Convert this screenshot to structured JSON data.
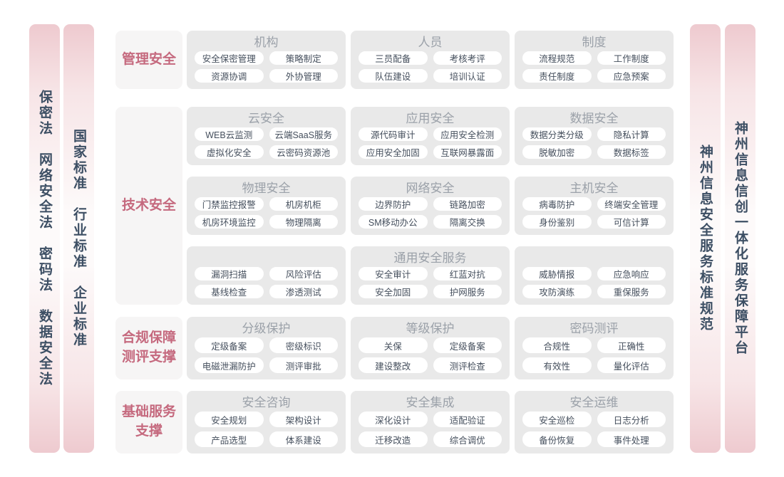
{
  "colors": {
    "bar_pink": "#eecacf",
    "bar_text_navy": "#3d4f64",
    "row_label_rose": "#c5697e",
    "row_label_bg": "#f6f5f5",
    "panel_gray": "#e9e9e9",
    "panel_title_gray": "#9ba1a9",
    "chip_text": "#454f5d",
    "chip_bg": "#ffffff"
  },
  "left_bars": [
    {
      "text": "保密法　网络安全法　密码法　数据安全法"
    },
    {
      "text": "国家标准　行业标准　企业标准"
    }
  ],
  "right_bars": [
    {
      "text": "神州信息安全服务标准规范"
    },
    {
      "text": "神州信息信创一体化服务保障平台"
    }
  ],
  "rows": [
    {
      "label": "管理安全",
      "subrows": [
        [
          {
            "title": "机构",
            "items": [
              "安全保密管理",
              "策略制定",
              "资源协调",
              "外协管理"
            ]
          },
          {
            "title": "人员",
            "items": [
              "三员配备",
              "考核考评",
              "队伍建设",
              "培训认证"
            ]
          },
          {
            "title": "制度",
            "items": [
              "流程规范",
              "工作制度",
              "责任制度",
              "应急预案"
            ]
          }
        ]
      ]
    },
    {
      "label": "技术安全",
      "subrows": [
        [
          {
            "title": "云安全",
            "items": [
              "WEB云监测",
              "云端SaaS服务",
              "虚拟化安全",
              "云密码资源池"
            ]
          },
          {
            "title": "应用安全",
            "items": [
              "源代码审计",
              "应用安全检测",
              "应用安全加固",
              "互联网暴露面"
            ]
          },
          {
            "title": "数据安全",
            "items": [
              "数据分类分级",
              "隐私计算",
              "脱敏加密",
              "数据标签"
            ]
          }
        ],
        [
          {
            "title": "物理安全",
            "items": [
              "门禁监控报警",
              "机房机柜",
              "机房环境监控",
              "物理隔离"
            ]
          },
          {
            "title": "网络安全",
            "items": [
              "边界防护",
              "链路加密",
              "SM移动办公",
              "隔离交换"
            ]
          },
          {
            "title": "主机安全",
            "items": [
              "病毒防护",
              "终端安全管理",
              "身份鉴别",
              "可信计算"
            ]
          }
        ],
        [
          {
            "title": "",
            "items": [
              "漏洞扫描",
              "风险评估",
              "基线检查",
              "渗透测试"
            ]
          },
          {
            "title": "通用安全服务",
            "items": [
              "安全审计",
              "红蓝对抗",
              "安全加固",
              "护网服务"
            ]
          },
          {
            "title": "",
            "items": [
              "威胁情报",
              "应急响应",
              "攻防演练",
              "重保服务"
            ]
          }
        ]
      ]
    },
    {
      "label": "合规保障\n测评支撑",
      "subrows": [
        [
          {
            "title": "分级保护",
            "items": [
              "定级备案",
              "密级标识",
              "电磁泄漏防护",
              "测评审批"
            ]
          },
          {
            "title": "等级保护",
            "items": [
              "关保",
              "定级备案",
              "建设整改",
              "测评检查"
            ]
          },
          {
            "title": "密码测评",
            "items": [
              "合规性",
              "正确性",
              "有效性",
              "量化评估"
            ]
          }
        ]
      ]
    },
    {
      "label": "基础服务\n支撑",
      "subrows": [
        [
          {
            "title": "安全咨询",
            "items": [
              "安全规划",
              "架构设计",
              "产品选型",
              "体系建设"
            ]
          },
          {
            "title": "安全集成",
            "items": [
              "深化设计",
              "适配验证",
              "迁移改造",
              "综合调优"
            ]
          },
          {
            "title": "安全运维",
            "items": [
              "安全巡检",
              "日志分析",
              "备份恢复",
              "事件处理"
            ]
          }
        ]
      ]
    }
  ]
}
